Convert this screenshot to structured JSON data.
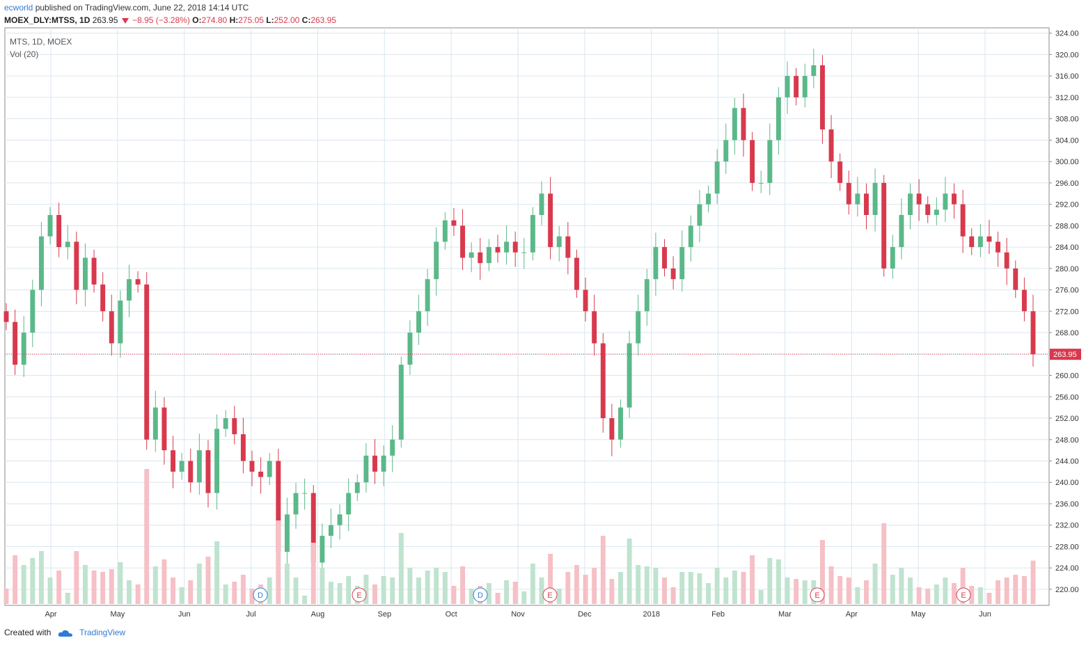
{
  "header": {
    "author": "ecworld",
    "published": "published on TradingView.com, June 22, 2018 14:14 UTC",
    "symbol": "MOEX_DLY:MTSS, 1D",
    "last": "263.95",
    "change": "−8.95 (−3.28%)",
    "o_label": "O:",
    "o_value": "274.80",
    "h_label": "H:",
    "h_value": "275.05",
    "l_label": "L:",
    "l_value": "252.00",
    "c_label": "C:",
    "c_value": "263.95"
  },
  "legend": {
    "series": "MTS, 1D, MOEX",
    "volume": "Vol (20)"
  },
  "footer": {
    "created": "Created with",
    "brand": "TradingView"
  },
  "chart_data": {
    "type": "candlestick",
    "ylim": [
      217,
      325
    ],
    "y_ticks": [
      220,
      224,
      228,
      232,
      236,
      240,
      244,
      248,
      252,
      256,
      260,
      264,
      268,
      272,
      276,
      280,
      284,
      288,
      292,
      296,
      300,
      304,
      308,
      312,
      316,
      320,
      324
    ],
    "y_tick_labels": [
      "220.00",
      "224.00",
      "228.00",
      "232.00",
      "236.00",
      "240.00",
      "244.00",
      "248.00",
      "252.00",
      "256.00",
      "260.00",
      "264.00",
      "268.00",
      "272.00",
      "276.00",
      "280.00",
      "284.00",
      "288.00",
      "292.00",
      "296.00",
      "300.00",
      "304.00",
      "308.00",
      "312.00",
      "316.00",
      "320.00",
      "324.00"
    ],
    "x_labels": [
      "Apr",
      "May",
      "Jun",
      "Jul",
      "Aug",
      "Sep",
      "Oct",
      "Nov",
      "Dec",
      "2018",
      "Feb",
      "Mar",
      "Apr",
      "May",
      "Jun"
    ],
    "last_price": 263.95,
    "last_price_label": "263.95",
    "closes": [
      270.0,
      262.0,
      268.0,
      276.0,
      286.0,
      290.0,
      284.0,
      285.0,
      276.0,
      282.0,
      277.0,
      272.0,
      266.0,
      274.0,
      278.0,
      277.0,
      248.0,
      254.0,
      246.0,
      242.0,
      244.0,
      240.0,
      246.0,
      238.0,
      250.0,
      252.0,
      249.0,
      244.0,
      242.0,
      241.0,
      244.0,
      227.0,
      234.0,
      238.0,
      238.0,
      225.0,
      230.0,
      232.0,
      234.0,
      238.0,
      240.0,
      245.0,
      242.0,
      245.0,
      248.0,
      262.0,
      268.0,
      272.0,
      278.0,
      285.0,
      289.0,
      288.0,
      282.0,
      283.0,
      281.0,
      284.0,
      283.0,
      285.0,
      283.0,
      283.0,
      290.0,
      294.0,
      284.0,
      286.0,
      282.0,
      276.0,
      272.0,
      266.0,
      252.0,
      248.0,
      254.0,
      266.0,
      272.0,
      278.0,
      284.0,
      280.0,
      278.0,
      284.0,
      288.0,
      292.0,
      294.0,
      300.0,
      304.0,
      310.0,
      304.0,
      296.0,
      296.0,
      304.0,
      312.0,
      316.0,
      312.0,
      316.0,
      318.0,
      306.0,
      300.0,
      296.0,
      292.0,
      294.0,
      290.0,
      296.0,
      280.0,
      284.0,
      290.0,
      294.0,
      292.0,
      290.0,
      291.0,
      294.0,
      292.0,
      286.0,
      284.0,
      286.0,
      285.0,
      283.0,
      280.0,
      276.0,
      272.0,
      263.95
    ],
    "volume_period": 20,
    "volume_note": "Volume bars at bottom; notable spikes near May 2017, Dec 2017, Apr 2018 and latest session",
    "events": [
      {
        "label": "D",
        "at": "Jul"
      },
      {
        "label": "E",
        "at": "Aug-Sep"
      },
      {
        "label": "D",
        "at": "Oct"
      },
      {
        "label": "E",
        "at": "Nov"
      },
      {
        "label": "E",
        "at": "Mar-Apr"
      },
      {
        "label": "E",
        "at": "May-Jun"
      }
    ]
  },
  "colors": {
    "up": "#5bb889",
    "down": "#d8394d",
    "up_volume": "#bfe3cf",
    "down_volume": "#f5c0c6",
    "ma": "#f59a4a",
    "grid": "#d9e6ef",
    "price_line": "#d8394d",
    "dividend": "#2f7bd4",
    "earnings": "#d8394d"
  }
}
